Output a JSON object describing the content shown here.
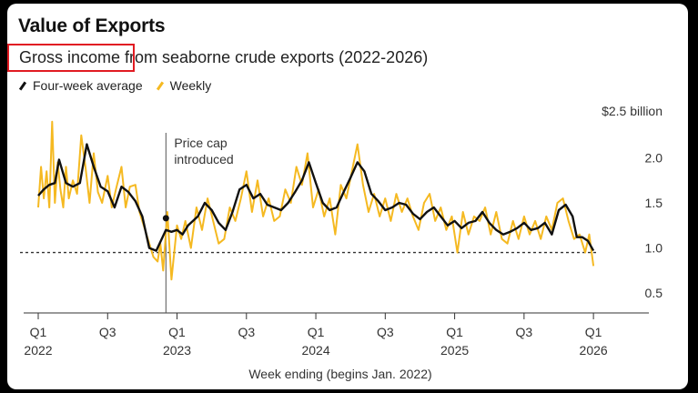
{
  "chart_data": {
    "type": "line",
    "title": "Value of Exports",
    "subtitle": "Gross income from seaborne crude exports (2022-2026)",
    "highlighted_text": "Gross income",
    "xlabel": "Week ending (begins Jan. 2022)",
    "ylabel": "",
    "unit_label": "$2.5 billion",
    "yticks": [
      0.5,
      1.0,
      1.5,
      2.0
    ],
    "ytick_labels": [
      "0.5",
      "1.0",
      "1.5",
      "2.0"
    ],
    "ylim": [
      0.3,
      2.6
    ],
    "xlim": [
      2022.0,
      2026.15
    ],
    "xticks": [
      {
        "x": 2022.0,
        "q": "Q1",
        "year": "2022"
      },
      {
        "x": 2022.5,
        "q": "Q3",
        "year": ""
      },
      {
        "x": 2023.0,
        "q": "Q1",
        "year": "2023"
      },
      {
        "x": 2023.5,
        "q": "Q3",
        "year": ""
      },
      {
        "x": 2024.0,
        "q": "Q1",
        "year": "2024"
      },
      {
        "x": 2024.5,
        "q": "Q3",
        "year": ""
      },
      {
        "x": 2025.0,
        "q": "Q1",
        "year": "2025"
      },
      {
        "x": 2025.5,
        "q": "Q3",
        "year": ""
      },
      {
        "x": 2026.0,
        "q": "Q1",
        "year": "2026"
      }
    ],
    "price_cap": {
      "x": 2022.92,
      "label_lines": [
        "Price cap",
        "introduced"
      ],
      "value": 1.33
    },
    "reference_line": 0.95,
    "colors": {
      "average": "#111111",
      "weekly": "#f5b921",
      "reference": "#333333",
      "marker": "#111111",
      "highlight": "#e11b22"
    },
    "series": [
      {
        "name": "Four-week average",
        "x": [
          2022.0,
          2022.04,
          2022.08,
          2022.12,
          2022.15,
          2022.2,
          2022.25,
          2022.3,
          2022.35,
          2022.4,
          2022.45,
          2022.5,
          2022.55,
          2022.6,
          2022.65,
          2022.7,
          2022.75,
          2022.8,
          2022.85,
          2022.92,
          2022.96,
          2023.0,
          2023.04,
          2023.08,
          2023.15,
          2023.2,
          2023.25,
          2023.3,
          2023.35,
          2023.4,
          2023.45,
          2023.5,
          2023.55,
          2023.6,
          2023.65,
          2023.7,
          2023.75,
          2023.8,
          2023.85,
          2023.9,
          2023.95,
          2024.0,
          2024.05,
          2024.1,
          2024.15,
          2024.2,
          2024.25,
          2024.3,
          2024.35,
          2024.4,
          2024.45,
          2024.5,
          2024.55,
          2024.6,
          2024.65,
          2024.7,
          2024.75,
          2024.8,
          2024.85,
          2024.9,
          2024.95,
          2025.0,
          2025.05,
          2025.1,
          2025.15,
          2025.2,
          2025.25,
          2025.3,
          2025.35,
          2025.4,
          2025.45,
          2025.5,
          2025.55,
          2025.6,
          2025.65,
          2025.7,
          2025.75,
          2025.8,
          2025.85,
          2025.88,
          2025.92,
          2025.96,
          2026.0
        ],
        "values": [
          1.58,
          1.65,
          1.7,
          1.72,
          1.98,
          1.72,
          1.68,
          1.72,
          2.15,
          1.9,
          1.68,
          1.63,
          1.45,
          1.68,
          1.62,
          1.52,
          1.35,
          1.0,
          0.97,
          1.2,
          1.18,
          1.2,
          1.15,
          1.25,
          1.35,
          1.5,
          1.42,
          1.28,
          1.2,
          1.4,
          1.65,
          1.7,
          1.55,
          1.6,
          1.48,
          1.45,
          1.42,
          1.5,
          1.62,
          1.75,
          1.95,
          1.72,
          1.5,
          1.42,
          1.45,
          1.62,
          1.78,
          1.95,
          1.85,
          1.6,
          1.52,
          1.42,
          1.45,
          1.5,
          1.48,
          1.38,
          1.32,
          1.4,
          1.45,
          1.35,
          1.25,
          1.3,
          1.22,
          1.28,
          1.3,
          1.4,
          1.28,
          1.2,
          1.15,
          1.18,
          1.22,
          1.28,
          1.2,
          1.22,
          1.28,
          1.15,
          1.42,
          1.48,
          1.35,
          1.12,
          1.12,
          1.08,
          0.97
        ]
      },
      {
        "name": "Weekly",
        "x": [
          2022.0,
          2022.02,
          2022.04,
          2022.06,
          2022.08,
          2022.1,
          2022.12,
          2022.14,
          2022.16,
          2022.18,
          2022.2,
          2022.22,
          2022.25,
          2022.28,
          2022.31,
          2022.34,
          2022.37,
          2022.4,
          2022.43,
          2022.46,
          2022.5,
          2022.53,
          2022.56,
          2022.6,
          2022.63,
          2022.66,
          2022.7,
          2022.73,
          2022.76,
          2022.8,
          2022.83,
          2022.86,
          2022.88,
          2022.9,
          2022.93,
          2022.96,
          2023.0,
          2023.03,
          2023.06,
          2023.1,
          2023.14,
          2023.18,
          2023.22,
          2023.26,
          2023.3,
          2023.34,
          2023.38,
          2023.42,
          2023.46,
          2023.5,
          2023.54,
          2023.58,
          2023.62,
          2023.66,
          2023.7,
          2023.74,
          2023.78,
          2023.82,
          2023.86,
          2023.9,
          2023.94,
          2023.98,
          2024.02,
          2024.06,
          2024.1,
          2024.14,
          2024.18,
          2024.22,
          2024.26,
          2024.3,
          2024.34,
          2024.38,
          2024.42,
          2024.46,
          2024.5,
          2024.54,
          2024.58,
          2024.62,
          2024.66,
          2024.7,
          2024.74,
          2024.78,
          2024.82,
          2024.86,
          2024.9,
          2024.94,
          2024.98,
          2025.02,
          2025.06,
          2025.1,
          2025.14,
          2025.18,
          2025.22,
          2025.26,
          2025.3,
          2025.34,
          2025.38,
          2025.42,
          2025.46,
          2025.5,
          2025.54,
          2025.58,
          2025.62,
          2025.66,
          2025.7,
          2025.74,
          2025.78,
          2025.82,
          2025.86,
          2025.9,
          2025.94,
          2025.97,
          2026.0
        ],
        "values": [
          1.45,
          1.9,
          1.55,
          1.85,
          1.45,
          2.4,
          1.5,
          1.95,
          1.65,
          1.45,
          1.9,
          1.55,
          1.75,
          1.6,
          2.25,
          1.9,
          1.5,
          2.05,
          1.62,
          1.5,
          1.8,
          1.45,
          1.65,
          1.9,
          1.45,
          1.68,
          1.7,
          1.4,
          1.25,
          1.05,
          0.9,
          0.85,
          1.05,
          0.75,
          1.4,
          0.65,
          1.25,
          1.1,
          1.3,
          1.0,
          1.45,
          1.2,
          1.55,
          1.3,
          1.05,
          1.1,
          1.45,
          1.3,
          1.55,
          1.85,
          1.4,
          1.75,
          1.35,
          1.55,
          1.3,
          1.35,
          1.65,
          1.5,
          1.9,
          1.7,
          2.05,
          1.45,
          1.65,
          1.35,
          1.55,
          1.15,
          1.7,
          1.55,
          1.85,
          2.15,
          1.7,
          1.4,
          1.6,
          1.35,
          1.55,
          1.3,
          1.6,
          1.4,
          1.55,
          1.35,
          1.2,
          1.5,
          1.6,
          1.3,
          1.45,
          1.2,
          1.35,
          0.95,
          1.4,
          1.15,
          1.35,
          1.3,
          1.45,
          1.15,
          1.4,
          1.1,
          1.05,
          1.3,
          1.1,
          1.35,
          1.15,
          1.3,
          1.1,
          1.35,
          1.2,
          1.5,
          1.55,
          1.3,
          1.1,
          1.15,
          0.95,
          1.15,
          0.8
        ]
      }
    ]
  }
}
